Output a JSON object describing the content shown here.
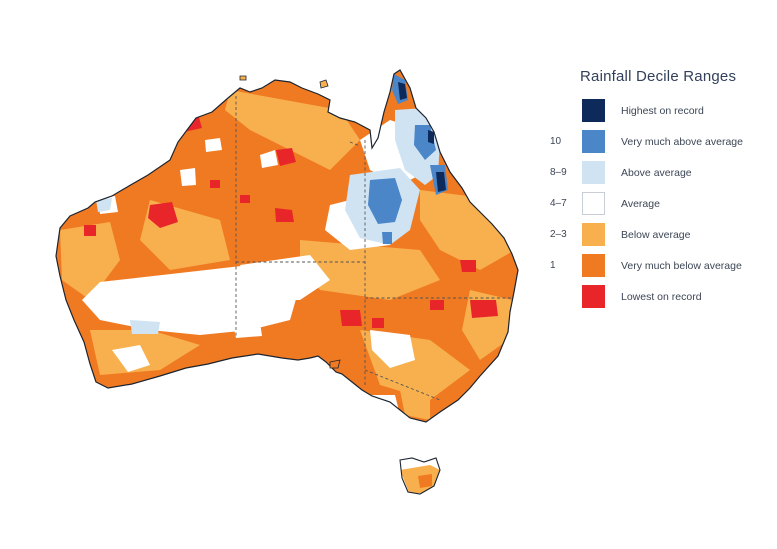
{
  "legend": {
    "title": "Rainfall Decile Ranges",
    "items": [
      {
        "code": "",
        "label": "Highest on record",
        "color": "#0d2a5b"
      },
      {
        "code": "10",
        "label": "Very much above average",
        "color": "#4a86c8"
      },
      {
        "code": "8–9",
        "label": "Above average",
        "color": "#cfe3f3"
      },
      {
        "code": "4–7",
        "label": "Average",
        "color": "#ffffff"
      },
      {
        "code": "2–3",
        "label": "Below average",
        "color": "#f8b04f"
      },
      {
        "code": "1",
        "label": "Very much below average",
        "color": "#f07a22"
      },
      {
        "code": "",
        "label": "Lowest on record",
        "color": "#e8262a"
      }
    ]
  },
  "map": {
    "region": "Australia",
    "palette": {
      "coast": "#1b2430",
      "border": "#555555",
      "highest": "#0d2a5b",
      "very_much_above": "#4a86c8",
      "above": "#cfe3f3",
      "average": "#ffffff",
      "below": "#f8b04f",
      "very_much_below": "#f07a22",
      "lowest": "#e8262a"
    }
  }
}
